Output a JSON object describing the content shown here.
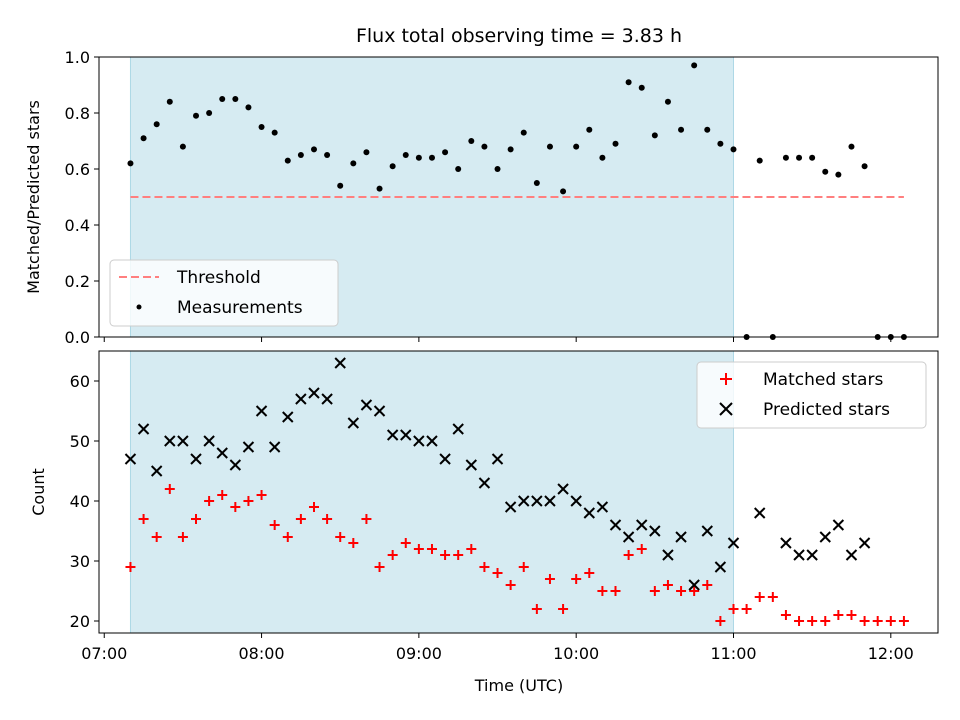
{
  "chart_data": [
    {
      "type": "scatter",
      "title": "Flux total observing time = 3.83 h",
      "ylabel": "Matched/Predicted stars",
      "ylim": [
        0,
        1.0
      ],
      "yticks": [
        "0.0",
        "0.2",
        "0.4",
        "0.6",
        "0.8",
        "1.0"
      ],
      "yticks_values": [
        0,
        0.2,
        0.4,
        0.6,
        0.8,
        1.0
      ],
      "shaded_range": [
        "07:10",
        "11:00"
      ],
      "threshold": {
        "name": "Threshold",
        "value": 0.5,
        "x_range": [
          "07:10",
          "12:05"
        ],
        "color": "#ff7f7f"
      },
      "legend": [
        "Threshold",
        "Measurements"
      ],
      "series": [
        {
          "name": "Measurements",
          "color": "#000000",
          "marker": "dot",
          "points": [
            [
              "07:10",
              0.62
            ],
            [
              "07:15",
              0.71
            ],
            [
              "07:20",
              0.76
            ],
            [
              "07:25",
              0.84
            ],
            [
              "07:30",
              0.68
            ],
            [
              "07:35",
              0.79
            ],
            [
              "07:40",
              0.8
            ],
            [
              "07:45",
              0.85
            ],
            [
              "07:50",
              0.85
            ],
            [
              "07:55",
              0.82
            ],
            [
              "08:00",
              0.75
            ],
            [
              "08:05",
              0.73
            ],
            [
              "08:10",
              0.63
            ],
            [
              "08:15",
              0.65
            ],
            [
              "08:20",
              0.67
            ],
            [
              "08:25",
              0.65
            ],
            [
              "08:30",
              0.54
            ],
            [
              "08:35",
              0.62
            ],
            [
              "08:40",
              0.66
            ],
            [
              "08:45",
              0.53
            ],
            [
              "08:50",
              0.61
            ],
            [
              "08:55",
              0.65
            ],
            [
              "09:00",
              0.64
            ],
            [
              "09:05",
              0.64
            ],
            [
              "09:10",
              0.66
            ],
            [
              "09:15",
              0.6
            ],
            [
              "09:20",
              0.7
            ],
            [
              "09:25",
              0.68
            ],
            [
              "09:30",
              0.6
            ],
            [
              "09:35",
              0.67
            ],
            [
              "09:40",
              0.73
            ],
            [
              "09:45",
              0.55
            ],
            [
              "09:50",
              0.68
            ],
            [
              "09:55",
              0.52
            ],
            [
              "10:00",
              0.68
            ],
            [
              "10:05",
              0.74
            ],
            [
              "10:10",
              0.64
            ],
            [
              "10:15",
              0.69
            ],
            [
              "10:20",
              0.91
            ],
            [
              "10:25",
              0.89
            ],
            [
              "10:30",
              0.72
            ],
            [
              "10:35",
              0.84
            ],
            [
              "10:40",
              0.74
            ],
            [
              "10:45",
              0.97
            ],
            [
              "10:50",
              0.74
            ],
            [
              "10:55",
              0.69
            ],
            [
              "11:00",
              0.67
            ],
            [
              "11:05",
              0.0
            ],
            [
              "11:10",
              0.63
            ],
            [
              "11:15",
              0.0
            ],
            [
              "11:20",
              0.64
            ],
            [
              "11:25",
              0.64
            ],
            [
              "11:30",
              0.64
            ],
            [
              "11:35",
              0.59
            ],
            [
              "11:40",
              0.58
            ],
            [
              "11:45",
              0.68
            ],
            [
              "11:50",
              0.61
            ],
            [
              "11:55",
              0.0
            ],
            [
              "12:00",
              0.0
            ],
            [
              "12:05",
              0.0
            ]
          ]
        }
      ]
    },
    {
      "type": "scatter",
      "xlabel": "Time (UTC)",
      "ylabel": "Count",
      "ylim": [
        18,
        65
      ],
      "yticks": [
        "20",
        "30",
        "40",
        "50",
        "60"
      ],
      "yticks_values": [
        20,
        30,
        40,
        50,
        60
      ],
      "xlim": [
        "06:58",
        "12:18"
      ],
      "xticks": [
        "07:00",
        "08:00",
        "09:00",
        "10:00",
        "11:00",
        "12:00"
      ],
      "shaded_range": [
        "07:10",
        "11:00"
      ],
      "legend": [
        "Matched stars",
        "Predicted stars"
      ],
      "series": [
        {
          "name": "Matched stars",
          "color": "#ff0000",
          "marker": "plus",
          "points": [
            [
              "07:10",
              29
            ],
            [
              "07:15",
              37
            ],
            [
              "07:20",
              34
            ],
            [
              "07:25",
              42
            ],
            [
              "07:30",
              34
            ],
            [
              "07:35",
              37
            ],
            [
              "07:40",
              40
            ],
            [
              "07:45",
              41
            ],
            [
              "07:50",
              39
            ],
            [
              "07:55",
              40
            ],
            [
              "08:00",
              41
            ],
            [
              "08:05",
              36
            ],
            [
              "08:10",
              34
            ],
            [
              "08:15",
              37
            ],
            [
              "08:20",
              39
            ],
            [
              "08:25",
              37
            ],
            [
              "08:30",
              34
            ],
            [
              "08:35",
              33
            ],
            [
              "08:40",
              37
            ],
            [
              "08:45",
              29
            ],
            [
              "08:50",
              31
            ],
            [
              "08:55",
              33
            ],
            [
              "09:00",
              32
            ],
            [
              "09:05",
              32
            ],
            [
              "09:10",
              31
            ],
            [
              "09:15",
              31
            ],
            [
              "09:20",
              32
            ],
            [
              "09:25",
              29
            ],
            [
              "09:30",
              28
            ],
            [
              "09:35",
              26
            ],
            [
              "09:40",
              29
            ],
            [
              "09:45",
              22
            ],
            [
              "09:50",
              27
            ],
            [
              "09:55",
              22
            ],
            [
              "10:00",
              27
            ],
            [
              "10:05",
              28
            ],
            [
              "10:10",
              25
            ],
            [
              "10:15",
              25
            ],
            [
              "10:20",
              31
            ],
            [
              "10:25",
              32
            ],
            [
              "10:30",
              25
            ],
            [
              "10:35",
              26
            ],
            [
              "10:40",
              25
            ],
            [
              "10:45",
              25
            ],
            [
              "10:50",
              26
            ],
            [
              "10:55",
              20
            ],
            [
              "11:00",
              22
            ],
            [
              "11:05",
              22
            ],
            [
              "11:10",
              24
            ],
            [
              "11:15",
              24
            ],
            [
              "11:20",
              21
            ],
            [
              "11:25",
              20
            ],
            [
              "11:30",
              20
            ],
            [
              "11:35",
              20
            ],
            [
              "11:40",
              21
            ],
            [
              "11:45",
              21
            ],
            [
              "11:50",
              20
            ],
            [
              "11:55",
              20
            ],
            [
              "12:00",
              20
            ],
            [
              "12:05",
              20
            ]
          ]
        },
        {
          "name": "Predicted stars",
          "color": "#000000",
          "marker": "x",
          "points": [
            [
              "07:10",
              47
            ],
            [
              "07:15",
              52
            ],
            [
              "07:20",
              45
            ],
            [
              "07:25",
              50
            ],
            [
              "07:30",
              50
            ],
            [
              "07:35",
              47
            ],
            [
              "07:40",
              50
            ],
            [
              "07:45",
              48
            ],
            [
              "07:50",
              46
            ],
            [
              "07:55",
              49
            ],
            [
              "08:00",
              55
            ],
            [
              "08:05",
              49
            ],
            [
              "08:10",
              54
            ],
            [
              "08:15",
              57
            ],
            [
              "08:20",
              58
            ],
            [
              "08:25",
              57
            ],
            [
              "08:30",
              63
            ],
            [
              "08:35",
              53
            ],
            [
              "08:40",
              56
            ],
            [
              "08:45",
              55
            ],
            [
              "08:50",
              51
            ],
            [
              "08:55",
              51
            ],
            [
              "09:00",
              50
            ],
            [
              "09:05",
              50
            ],
            [
              "09:10",
              47
            ],
            [
              "09:15",
              52
            ],
            [
              "09:20",
              46
            ],
            [
              "09:25",
              43
            ],
            [
              "09:30",
              47
            ],
            [
              "09:35",
              39
            ],
            [
              "09:40",
              40
            ],
            [
              "09:45",
              40
            ],
            [
              "09:50",
              40
            ],
            [
              "09:55",
              42
            ],
            [
              "10:00",
              40
            ],
            [
              "10:05",
              38
            ],
            [
              "10:10",
              39
            ],
            [
              "10:15",
              36
            ],
            [
              "10:20",
              34
            ],
            [
              "10:25",
              36
            ],
            [
              "10:30",
              35
            ],
            [
              "10:35",
              31
            ],
            [
              "10:40",
              34
            ],
            [
              "10:45",
              26
            ],
            [
              "10:50",
              35
            ],
            [
              "10:55",
              29
            ],
            [
              "11:00",
              33
            ],
            [
              "11:10",
              38
            ],
            [
              "11:20",
              33
            ],
            [
              "11:25",
              31
            ],
            [
              "11:30",
              31
            ],
            [
              "11:35",
              34
            ],
            [
              "11:40",
              36
            ],
            [
              "11:45",
              31
            ],
            [
              "11:50",
              33
            ]
          ]
        }
      ]
    }
  ]
}
